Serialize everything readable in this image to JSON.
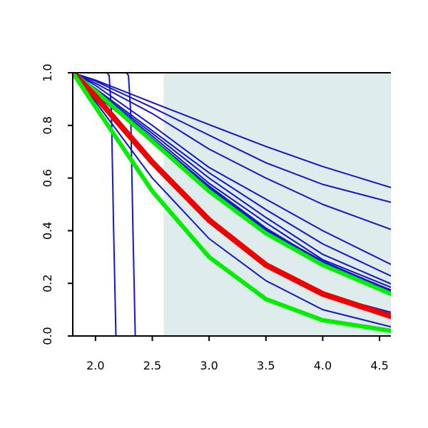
{
  "chart_data": {
    "type": "line",
    "title": "",
    "xlabel": "",
    "ylabel": "",
    "xlim": [
      1.8,
      4.6
    ],
    "ylim": [
      0.0,
      1.0
    ],
    "grid": false,
    "legend": "none",
    "x_ticks": [
      {
        "value": 2.0,
        "label": "2.0"
      },
      {
        "value": 2.5,
        "label": "2.5"
      },
      {
        "value": 3.0,
        "label": "3.0"
      },
      {
        "value": 3.5,
        "label": "3.5"
      },
      {
        "value": 4.0,
        "label": "4.0"
      },
      {
        "value": 4.5,
        "label": "4.5"
      }
    ],
    "y_ticks": [
      {
        "value": 0.0,
        "label": "0.0"
      },
      {
        "value": 0.2,
        "label": "0.2"
      },
      {
        "value": 0.4,
        "label": "0.4"
      },
      {
        "value": 0.6,
        "label": "0.6"
      },
      {
        "value": 0.8,
        "label": "0.8"
      },
      {
        "value": 1.0,
        "label": "1.0"
      }
    ],
    "shaded_region": {
      "x": [
        2.6,
        4.6
      ],
      "color": "#deecec"
    },
    "series": [
      {
        "color": "#1515d0",
        "width": 2,
        "x": [
          1.8,
          2.0,
          2.5,
          3.0,
          3.5,
          4.0,
          4.6
        ],
        "y": [
          1.0,
          0.972,
          0.887,
          0.803,
          0.72,
          0.644,
          0.564
        ]
      },
      {
        "color": "#1515d0",
        "width": 2,
        "x": [
          1.8,
          2.0,
          2.5,
          3.0,
          3.5,
          4.0,
          4.6
        ],
        "y": [
          1.0,
          0.968,
          0.868,
          0.763,
          0.658,
          0.576,
          0.508
        ]
      },
      {
        "color": "#1515d0",
        "width": 2,
        "x": [
          1.8,
          2.0,
          2.5,
          3.0,
          3.5,
          4.0,
          4.6
        ],
        "y": [
          1.0,
          0.96,
          0.845,
          0.71,
          0.6,
          0.5,
          0.405
        ]
      },
      {
        "color": "#1515d0",
        "width": 2,
        "x": [
          1.8,
          2.0,
          2.5,
          3.0,
          3.5,
          4.0,
          4.6
        ],
        "y": [
          1.0,
          0.952,
          0.8,
          0.64,
          0.52,
          0.4,
          0.272
        ]
      },
      {
        "color": "#1515d0",
        "width": 2,
        "x": [
          1.8,
          2.0,
          2.5,
          3.0,
          3.5,
          4.0,
          4.6
        ],
        "y": [
          1.0,
          0.94,
          0.78,
          0.62,
          0.48,
          0.35,
          0.228
        ]
      },
      {
        "color": "#1515d0",
        "width": 2,
        "x": [
          1.8,
          2.0,
          2.5,
          3.0,
          3.5,
          4.0,
          4.6
        ],
        "y": [
          1.0,
          0.935,
          0.77,
          0.6,
          0.45,
          0.31,
          0.198
        ]
      },
      {
        "color": "#1515d0",
        "width": 2,
        "x": [
          1.8,
          2.0,
          2.5,
          3.0,
          3.5,
          4.0,
          4.6
        ],
        "y": [
          1.0,
          0.93,
          0.76,
          0.58,
          0.43,
          0.29,
          0.185
        ]
      },
      {
        "color": "#1515d0",
        "width": 2,
        "x": [
          1.8,
          2.0,
          2.5,
          3.0,
          3.5,
          4.0,
          4.6
        ],
        "y": [
          1.0,
          0.925,
          0.75,
          0.57,
          0.41,
          0.28,
          0.175
        ]
      },
      {
        "color": "#1515d0",
        "width": 2,
        "x": [
          1.8,
          2.0,
          2.5,
          3.0,
          3.5,
          4.0,
          4.6
        ],
        "y": [
          1.0,
          0.922,
          0.745,
          0.565,
          0.405,
          0.275,
          0.17
        ]
      },
      {
        "color": "#1515d0",
        "width": 2,
        "x": [
          1.8,
          2.0,
          2.5,
          3.0,
          3.5,
          4.0,
          4.6
        ],
        "y": [
          1.0,
          0.918,
          0.74,
          0.56,
          0.4,
          0.27,
          0.165
        ]
      },
      {
        "color": "#1515d0",
        "width": 2,
        "x": [
          1.8,
          2.0,
          2.5,
          3.0,
          3.5,
          4.0,
          4.6
        ],
        "y": [
          1.0,
          0.91,
          0.65,
          0.43,
          0.27,
          0.16,
          0.09
        ]
      },
      {
        "color": "#1515d0",
        "width": 2,
        "x": [
          1.8,
          2.0,
          2.5,
          3.0,
          3.5,
          4.0,
          4.6
        ],
        "y": [
          1.0,
          0.89,
          0.6,
          0.37,
          0.21,
          0.1,
          0.035
        ]
      },
      {
        "color": "#1515d0",
        "width": 2,
        "x": [
          1.8,
          2.1,
          2.12,
          2.14,
          2.16,
          2.18,
          4.6
        ],
        "y": [
          1.0,
          1.0,
          0.99,
          0.85,
          0.4,
          0.0,
          0.0
        ]
      },
      {
        "color": "#1515d0",
        "width": 2,
        "x": [
          1.8,
          2.27,
          2.29,
          2.31,
          2.33,
          2.35,
          4.6
        ],
        "y": [
          1.0,
          1.0,
          0.99,
          0.85,
          0.4,
          0.0,
          0.0
        ]
      },
      {
        "color": "#1515d0",
        "width": 5,
        "x": [
          1.8,
          2.0,
          2.5,
          3.0,
          3.5,
          4.0,
          4.6
        ],
        "y": [
          1.0,
          0.925,
          0.745,
          0.56,
          0.4,
          0.28,
          0.168
        ]
      },
      {
        "color": "#00ee00",
        "width": 6,
        "x": [
          1.8,
          2.0,
          2.5,
          3.0,
          3.5,
          4.0,
          4.6
        ],
        "y": [
          1.0,
          0.93,
          0.74,
          0.55,
          0.39,
          0.27,
          0.16
        ]
      },
      {
        "color": "#ee0000",
        "width": 8,
        "x": [
          1.8,
          2.0,
          2.5,
          3.0,
          3.5,
          4.0,
          4.6
        ],
        "y": [
          1.0,
          0.91,
          0.66,
          0.44,
          0.27,
          0.16,
          0.075
        ]
      },
      {
        "color": "#00ee00",
        "width": 6,
        "x": [
          1.8,
          2.0,
          2.5,
          3.0,
          3.5,
          4.0,
          4.6
        ],
        "y": [
          1.0,
          0.87,
          0.55,
          0.3,
          0.14,
          0.06,
          0.02
        ]
      }
    ]
  }
}
